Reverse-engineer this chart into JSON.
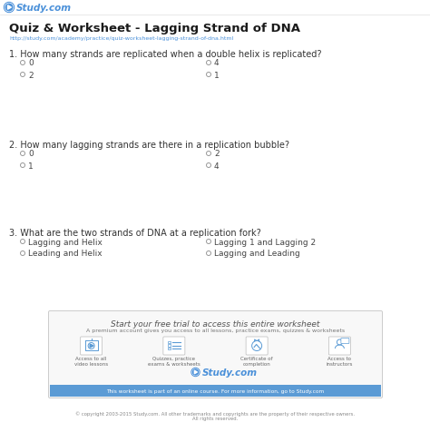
{
  "bg_color": "#ffffff",
  "logo_color": "#4a90d9",
  "logo_text": "Study.com",
  "title": "Quiz & Worksheet - Lagging Strand of DNA",
  "url": "http://study.com/academy/practice/quiz-worksheet-lagging-strand-of-dna.html",
  "questions": [
    {
      "number": "1.",
      "text": "How many strands are replicated when a double helix is replicated?",
      "options_left": [
        "0",
        "2"
      ],
      "options_right": [
        "4",
        "1"
      ]
    },
    {
      "number": "2.",
      "text": "How many lagging strands are there in a replication bubble?",
      "options_left": [
        "0",
        "1"
      ],
      "options_right": [
        "2",
        "4"
      ]
    },
    {
      "number": "3.",
      "text": "What are the two strands of DNA at a replication fork?",
      "options_left": [
        "Lagging and Helix",
        "Leading and Helix"
      ],
      "options_right": [
        "Lagging 1 and Lagging 2",
        "Lagging and Leading"
      ]
    }
  ],
  "promo_title": "Start your free trial to access this entire worksheet",
  "promo_subtitle": "A premium account gives you access to all lessons, practice exams, quizzes & worksheets",
  "promo_items": [
    "Access to all\nvideo lessons",
    "Quizzes, practice\nexams & worksheets",
    "Certificate of\ncompletion",
    "Access to\ninstructors"
  ],
  "promo_bg": "#f8f8f8",
  "promo_border": "#cccccc",
  "promo_logo": "Study.com",
  "promo_bar_text": "This worksheet is part of an online course. For more information, go to ",
  "promo_bar_link": "Study.com",
  "promo_bar_color": "#5b9bd5",
  "footer_text": "© copyright 2003-2015 Study.com. All other trademarks and copyrights are the property of their respective owners.\nAll rights reserved.",
  "radio_color": "#999999",
  "text_color": "#444444",
  "title_color": "#1a1a1a",
  "url_color": "#4a90d9",
  "q_text_color": "#333333"
}
